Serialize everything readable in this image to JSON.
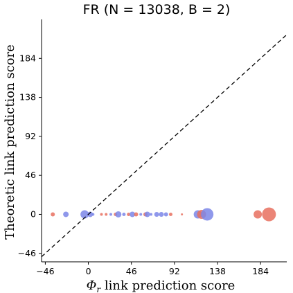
{
  "chart_data": {
    "type": "scatter",
    "title": "FR (N = 13038, B = 2)",
    "xlabel": "Φ",
    "xlabel_sub": "r",
    "xlabel_rest": " link prediction score",
    "ylabel": "Theoretic link prediction score",
    "xlim": [
      -50,
      212
    ],
    "ylim": [
      -56,
      230
    ],
    "xticks": [
      -46,
      0,
      46,
      92,
      138,
      184
    ],
    "xtick_labels": [
      "−46",
      "0",
      "46",
      "92",
      "138",
      "184"
    ],
    "yticks": [
      -46,
      0,
      46,
      92,
      138,
      184
    ],
    "ytick_labels": [
      "−46",
      "0",
      "46",
      "92",
      "138",
      "184"
    ],
    "reference_line": "y = x (dashed)",
    "grid": false,
    "colors": {
      "red": "#e8705f",
      "blue": "#7b86e8"
    },
    "points": [
      {
        "x": -38,
        "y": 0,
        "size": 3,
        "color": "red"
      },
      {
        "x": -24,
        "y": 0,
        "size": 4,
        "color": "blue"
      },
      {
        "x": -4,
        "y": 0,
        "size": 6,
        "color": "blue"
      },
      {
        "x": 2,
        "y": 0,
        "size": 4,
        "color": "blue"
      },
      {
        "x": 5,
        "y": 0,
        "size": 2,
        "color": "blue"
      },
      {
        "x": 14,
        "y": 0,
        "size": 2,
        "color": "red"
      },
      {
        "x": 19,
        "y": 0,
        "size": 2,
        "color": "red"
      },
      {
        "x": 24,
        "y": 0,
        "size": 2,
        "color": "blue"
      },
      {
        "x": 29,
        "y": 0,
        "size": 2.5,
        "color": "red"
      },
      {
        "x": 32,
        "y": 0,
        "size": 4.5,
        "color": "blue"
      },
      {
        "x": 38,
        "y": 0,
        "size": 2.5,
        "color": "blue"
      },
      {
        "x": 43,
        "y": 0,
        "size": 2.5,
        "color": "red"
      },
      {
        "x": 47,
        "y": 0,
        "size": 4,
        "color": "blue"
      },
      {
        "x": 51,
        "y": 0,
        "size": 3,
        "color": "red"
      },
      {
        "x": 56,
        "y": 0,
        "size": 2,
        "color": "blue"
      },
      {
        "x": 61,
        "y": 0,
        "size": 3,
        "color": "red"
      },
      {
        "x": 63,
        "y": 0,
        "size": 4,
        "color": "blue"
      },
      {
        "x": 67,
        "y": 0,
        "size": 2,
        "color": "blue"
      },
      {
        "x": 73,
        "y": 0,
        "size": 3.5,
        "color": "blue"
      },
      {
        "x": 78,
        "y": 0,
        "size": 3.5,
        "color": "blue"
      },
      {
        "x": 83,
        "y": 0,
        "size": 3,
        "color": "blue"
      },
      {
        "x": 88,
        "y": 0,
        "size": 2.5,
        "color": "red"
      },
      {
        "x": 100,
        "y": 0,
        "size": 1.5,
        "color": "red"
      },
      {
        "x": 117,
        "y": 0,
        "size": 6,
        "color": "blue"
      },
      {
        "x": 121,
        "y": 0,
        "size": 6.5,
        "color": "red"
      },
      {
        "x": 127,
        "y": 0,
        "size": 9,
        "color": "blue"
      },
      {
        "x": 181,
        "y": 0,
        "size": 6,
        "color": "red"
      },
      {
        "x": 193,
        "y": 0,
        "size": 10,
        "color": "red"
      }
    ]
  }
}
